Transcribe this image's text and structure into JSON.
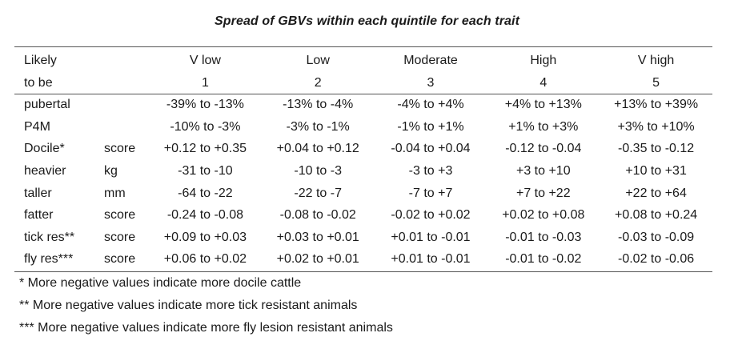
{
  "title": "Spread of GBVs within each quintile for each trait",
  "header": {
    "row1": {
      "trait": "Likely",
      "unit": "",
      "quintiles": [
        "V low",
        "Low",
        "Moderate",
        "High",
        "V high"
      ]
    },
    "row2": {
      "trait": "to be",
      "unit": "",
      "quintiles": [
        "1",
        "2",
        "3",
        "4",
        "5"
      ]
    }
  },
  "rows": [
    {
      "trait": "pubertal",
      "unit": "",
      "values": [
        "-39% to -13%",
        "-13% to -4%",
        "-4% to +4%",
        "+4% to +13%",
        "+13% to +39%"
      ]
    },
    {
      "trait": "P4M",
      "unit": "",
      "values": [
        "-10% to -3%",
        "-3% to -1%",
        "-1% to +1%",
        "+1% to +3%",
        "+3% to +10%"
      ]
    },
    {
      "trait": "Docile*",
      "unit": "score",
      "values": [
        "+0.12 to +0.35",
        "+0.04 to +0.12",
        "-0.04 to +0.04",
        "-0.12 to -0.04",
        "-0.35 to -0.12"
      ]
    },
    {
      "trait": "heavier",
      "unit": "kg",
      "values": [
        "-31 to -10",
        "-10 to -3",
        "-3 to +3",
        "+3 to +10",
        "+10 to +31"
      ]
    },
    {
      "trait": "taller",
      "unit": "mm",
      "values": [
        "-64 to -22",
        "-22 to -7",
        "-7 to +7",
        "+7 to +22",
        "+22 to +64"
      ]
    },
    {
      "trait": "fatter",
      "unit": "score",
      "values": [
        "-0.24 to -0.08",
        "-0.08 to -0.02",
        "-0.02 to +0.02",
        "+0.02 to +0.08",
        "+0.08 to +0.24"
      ]
    },
    {
      "trait": "tick res**",
      "unit": "score",
      "values": [
        "+0.09 to +0.03",
        "+0.03 to +0.01",
        "+0.01 to -0.01",
        "-0.01 to -0.03",
        "-0.03 to -0.09"
      ]
    },
    {
      "trait": "fly res***",
      "unit": "score",
      "values": [
        "+0.06 to +0.02",
        "+0.02 to +0.01",
        "+0.01 to -0.01",
        "-0.01 to -0.02",
        "-0.02 to -0.06"
      ]
    }
  ],
  "notes": [
    "* More negative values indicate more docile cattle",
    "** More negative values indicate more tick resistant animals",
    "*** More negative values indicate more fly lesion resistant animals"
  ]
}
